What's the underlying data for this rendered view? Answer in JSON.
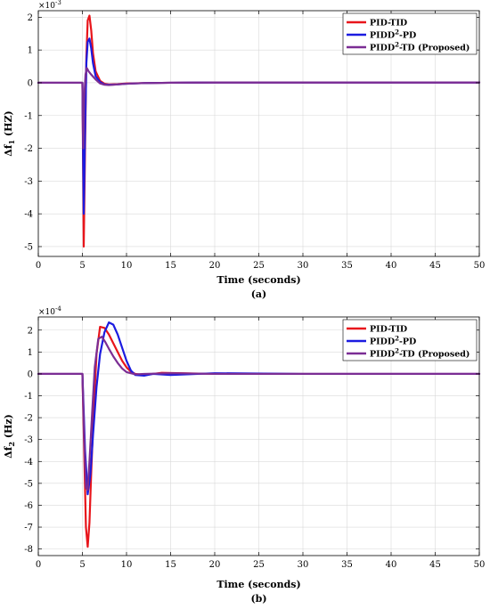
{
  "chart_data": [
    {
      "type": "line",
      "caption": "(a)",
      "xlabel": "Time (seconds)",
      "ylabel": "Δf1 (HZ)",
      "ylabel_main": "Δf",
      "ylabel_sub": "1",
      "ylabel_unit": "(HZ)",
      "multiplier": "×10",
      "multiplier_exp": "-3",
      "xlim": [
        0,
        50
      ],
      "ylim": [
        -5.3,
        2.2
      ],
      "xticks": [
        0,
        5,
        10,
        15,
        20,
        25,
        30,
        35,
        40,
        45,
        50
      ],
      "yticks": [
        -5,
        -4,
        -3,
        -2,
        -1,
        0,
        1,
        2
      ],
      "grid": true,
      "legend_position": "top-right",
      "series": [
        {
          "name": "PID-TID",
          "name_main": "PID-TID",
          "name_sup": "",
          "name_tail": "",
          "color": "#e8151b",
          "x": [
            0,
            5,
            5.15,
            5.3,
            5.45,
            5.6,
            5.8,
            6.0,
            6.2,
            6.5,
            7.0,
            7.5,
            8.0,
            9.0,
            10.0,
            12.0,
            15.0,
            20,
            30,
            40,
            50
          ],
          "y": [
            0,
            0,
            -5.0,
            -2.0,
            0.8,
            1.9,
            2.05,
            1.6,
            0.9,
            0.35,
            0.06,
            -0.03,
            -0.05,
            -0.04,
            -0.02,
            -0.01,
            0,
            0.01,
            0.01,
            0.01,
            0.01
          ]
        },
        {
          "name": "PIDD2-PD",
          "name_main": "PIDD",
          "name_sup": "2",
          "name_tail": "-PD",
          "color": "#1b1be0",
          "x": [
            0,
            5,
            5.15,
            5.3,
            5.45,
            5.6,
            5.8,
            6.0,
            6.2,
            6.5,
            7.0,
            7.5,
            8.0,
            9.0,
            10.0,
            12.0,
            15.0,
            20,
            30,
            40,
            50
          ],
          "y": [
            0,
            0,
            -4.0,
            -1.5,
            0.6,
            1.25,
            1.35,
            1.05,
            0.6,
            0.2,
            0.02,
            -0.05,
            -0.06,
            -0.05,
            -0.03,
            -0.01,
            0,
            0.01,
            0.01,
            0.01,
            0.01
          ]
        },
        {
          "name": "PIDD2-TD (Proposed)",
          "name_main": "PIDD",
          "name_sup": "2",
          "name_tail": "-TD (Proposed)",
          "color": "#7b2d94",
          "x": [
            0,
            5,
            5.1,
            5.2,
            5.35,
            5.5,
            5.7,
            6.0,
            6.5,
            7.0,
            7.5,
            8.0,
            9.0,
            10.0,
            12.0,
            15.0,
            20,
            30,
            40,
            50
          ],
          "y": [
            0,
            0,
            -2.0,
            -0.5,
            0.25,
            0.45,
            0.35,
            0.25,
            0.1,
            -0.02,
            -0.06,
            -0.07,
            -0.05,
            -0.03,
            -0.01,
            0,
            0.01,
            0.01,
            0.01,
            0.01
          ]
        }
      ]
    },
    {
      "type": "line",
      "caption": "(b)",
      "xlabel": "Time (seconds)",
      "ylabel": "Δf2 (Hz)",
      "ylabel_main": "Δf",
      "ylabel_sub": "2",
      "ylabel_unit": "(Hz)",
      "multiplier": "×10",
      "multiplier_exp": "-4",
      "xlim": [
        0,
        50
      ],
      "ylim": [
        -8.3,
        2.6
      ],
      "xticks": [
        0,
        5,
        10,
        15,
        20,
        25,
        30,
        35,
        40,
        45,
        50
      ],
      "yticks": [
        -8,
        -7,
        -6,
        -5,
        -4,
        -3,
        -2,
        -1,
        0,
        1,
        2
      ],
      "grid": true,
      "legend_position": "top-right",
      "series": [
        {
          "name": "PID-TID",
          "name_main": "PID-TID",
          "name_sup": "",
          "name_tail": "",
          "color": "#e8151b",
          "x": [
            0,
            5,
            5.2,
            5.4,
            5.6,
            5.8,
            6.0,
            6.3,
            6.6,
            7.0,
            7.5,
            8.0,
            8.5,
            9.0,
            9.5,
            10.0,
            10.5,
            11.0,
            12.0,
            14.0,
            20,
            30,
            40,
            50
          ],
          "y": [
            0,
            0,
            -3.5,
            -7.0,
            -7.9,
            -6.8,
            -4.5,
            -1.5,
            0.9,
            2.15,
            2.1,
            1.8,
            1.4,
            1.0,
            0.6,
            0.3,
            0.1,
            0.0,
            -0.05,
            0.05,
            0,
            0,
            0,
            0
          ]
        },
        {
          "name": "PIDD2-PD",
          "name_main": "PIDD",
          "name_sup": "2",
          "name_tail": "-PD",
          "color": "#1b1be0",
          "x": [
            0,
            5,
            5.3,
            5.6,
            5.9,
            6.2,
            6.6,
            7.0,
            7.5,
            8.0,
            8.5,
            9.0,
            9.5,
            10.0,
            10.5,
            11.0,
            12.0,
            13.0,
            15.0,
            20,
            30,
            40,
            50
          ],
          "y": [
            0,
            0,
            -3.5,
            -5.5,
            -4.6,
            -2.8,
            -0.6,
            0.9,
            1.9,
            2.35,
            2.25,
            1.8,
            1.2,
            0.6,
            0.15,
            -0.05,
            -0.08,
            0.0,
            -0.05,
            0.03,
            0,
            0,
            0
          ]
        },
        {
          "name": "PIDD2-TD (Proposed)",
          "name_main": "PIDD",
          "name_sup": "2",
          "name_tail": "-TD (Proposed)",
          "color": "#7b2d94",
          "x": [
            0,
            5,
            5.2,
            5.4,
            5.6,
            5.8,
            6.1,
            6.4,
            6.8,
            7.2,
            7.6,
            8.0,
            8.5,
            9.0,
            9.5,
            10.0,
            11.0,
            12.0,
            15.0,
            20,
            30,
            40,
            50
          ],
          "y": [
            0,
            0,
            -3.0,
            -5.2,
            -5.3,
            -4.0,
            -1.8,
            0.3,
            1.6,
            1.7,
            1.45,
            1.15,
            0.8,
            0.5,
            0.25,
            0.08,
            -0.02,
            0.0,
            0.03,
            0,
            0,
            0,
            0
          ]
        }
      ]
    }
  ]
}
